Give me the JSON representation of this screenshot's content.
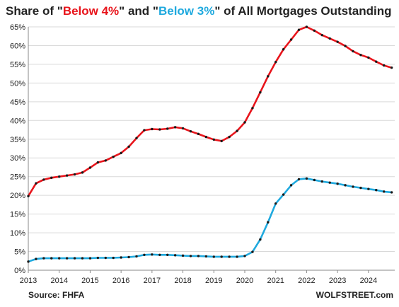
{
  "title": {
    "prefix": "Share of \"",
    "red_text": "Below 4%",
    "middle": "\" and \"",
    "blue_text": "Below 3%",
    "suffix": "\" of All Mortgages Outstanding"
  },
  "source": "Source: FHFA",
  "brand": "WOLFSTREET.com",
  "colors": {
    "below4": "#e8141b",
    "below3": "#1fa9de",
    "marker": "#1a1a1a",
    "grid": "#d9d9d9",
    "axis": "#8a8a8a"
  },
  "chart_data": {
    "type": "line",
    "title": "Share of \"Below 4%\" and \"Below 3%\" of All Mortgages Outstanding",
    "xlabel": "",
    "ylabel": "",
    "xlim": [
      2013,
      2024.85
    ],
    "ylim": [
      0,
      65
    ],
    "x_ticks": [
      "2013",
      "2014",
      "2015",
      "2016",
      "2017",
      "2018",
      "2019",
      "2020",
      "2021",
      "2022",
      "2023",
      "2024"
    ],
    "y_ticks": [
      "0%",
      "5%",
      "10%",
      "15%",
      "20%",
      "25%",
      "30%",
      "35%",
      "40%",
      "45%",
      "50%",
      "55%",
      "60%",
      "65%"
    ],
    "grid": "horizontal",
    "legend": "none",
    "x": [
      2013.0,
      2013.25,
      2013.5,
      2013.75,
      2014.0,
      2014.25,
      2014.5,
      2014.75,
      2015.0,
      2015.25,
      2015.5,
      2015.75,
      2016.0,
      2016.25,
      2016.5,
      2016.75,
      2017.0,
      2017.25,
      2017.5,
      2017.75,
      2018.0,
      2018.25,
      2018.5,
      2018.75,
      2019.0,
      2019.25,
      2019.5,
      2019.75,
      2020.0,
      2020.25,
      2020.5,
      2020.75,
      2021.0,
      2021.25,
      2021.5,
      2021.75,
      2022.0,
      2022.25,
      2022.5,
      2022.75,
      2023.0,
      2023.25,
      2023.5,
      2023.75,
      2024.0,
      2024.25,
      2024.5,
      2024.75
    ],
    "series": [
      {
        "key": "below4",
        "values": [
          19.8,
          23.2,
          24.2,
          24.7,
          25.0,
          25.3,
          25.6,
          26.1,
          27.4,
          28.8,
          29.3,
          30.3,
          31.3,
          33.0,
          35.3,
          37.4,
          37.7,
          37.6,
          37.8,
          38.2,
          37.9,
          37.1,
          36.4,
          35.6,
          34.9,
          34.5,
          35.6,
          37.2,
          39.5,
          43.3,
          47.5,
          51.8,
          55.6,
          59.0,
          61.6,
          64.2,
          65.0,
          64.0,
          62.8,
          61.9,
          61.0,
          59.9,
          58.5,
          57.5,
          56.8,
          55.7,
          54.7,
          54.1
        ]
      },
      {
        "key": "below3",
        "values": [
          2.3,
          3.0,
          3.2,
          3.2,
          3.2,
          3.2,
          3.2,
          3.2,
          3.2,
          3.3,
          3.3,
          3.3,
          3.4,
          3.5,
          3.7,
          4.1,
          4.2,
          4.1,
          4.1,
          4.0,
          3.9,
          3.8,
          3.8,
          3.7,
          3.6,
          3.6,
          3.6,
          3.6,
          3.8,
          4.9,
          8.2,
          12.8,
          17.8,
          20.2,
          22.7,
          24.3,
          24.5,
          24.1,
          23.7,
          23.4,
          23.1,
          22.7,
          22.3,
          22.0,
          21.7,
          21.4,
          21.0,
          20.8
        ]
      }
    ]
  }
}
